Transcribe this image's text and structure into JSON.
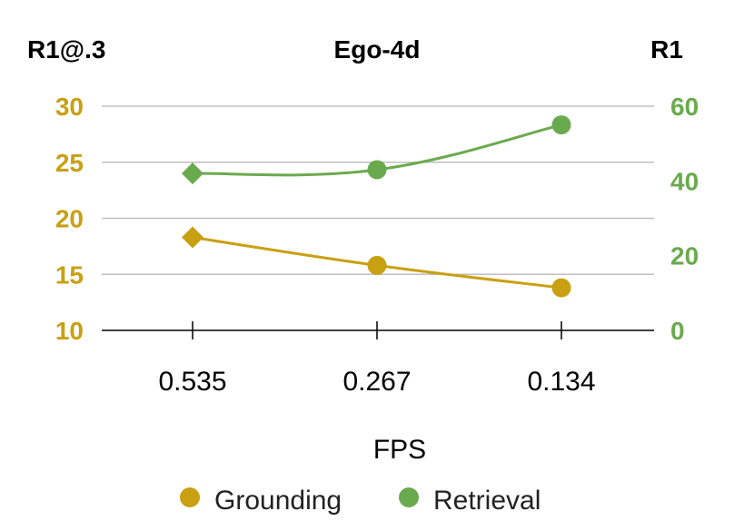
{
  "chart_data": {
    "type": "line",
    "title": "Ego-4d",
    "xlabel": "FPS",
    "ylabel_left": "R1@.3",
    "ylabel_right": "R1",
    "categories": [
      "0.535",
      "0.267",
      "0.134"
    ],
    "ylim_left": [
      10,
      30
    ],
    "yticks_left": [
      "10",
      "15",
      "20",
      "25",
      "30"
    ],
    "ylim_right": [
      0,
      60
    ],
    "yticks_right": [
      "0",
      "20",
      "40",
      "60"
    ],
    "grid": true,
    "legend_position": "bottom",
    "series": [
      {
        "name": "Grounding",
        "axis": "left",
        "color": "#c9a012",
        "values": [
          18.3,
          15.8,
          13.8
        ]
      },
      {
        "name": "Retrieval",
        "axis": "right",
        "color": "#6aaa4e",
        "values": [
          42,
          43,
          55
        ]
      }
    ]
  }
}
